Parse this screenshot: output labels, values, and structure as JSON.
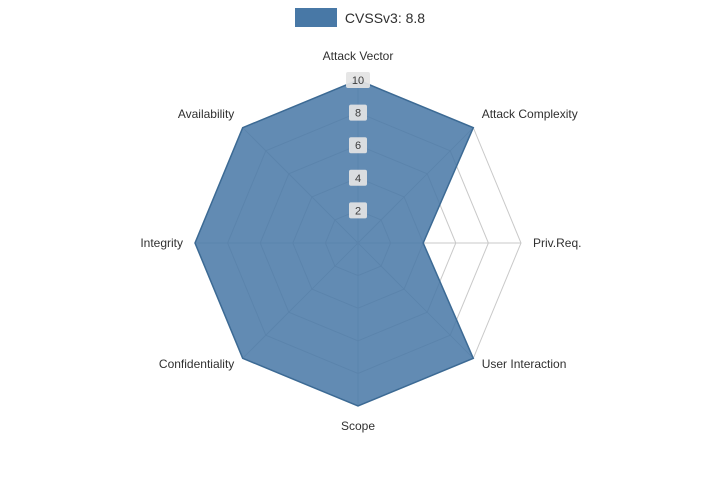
{
  "chart_data": {
    "type": "radar",
    "title": "",
    "legend": {
      "label": "CVSSv3: 8.8",
      "color": "#4878a6"
    },
    "categories": [
      "Attack Vector",
      "Attack Complexity",
      "Priv.Req.",
      "User Interaction",
      "Scope",
      "Confidentiality",
      "Integrity",
      "Availability"
    ],
    "values": [
      10,
      10,
      4,
      10,
      10,
      10,
      10,
      10
    ],
    "ticks": [
      2,
      4,
      6,
      8,
      10
    ],
    "rlim": [
      0,
      10
    ],
    "grid": "on",
    "legend_position": "top-center",
    "fill_color": "#4878a6",
    "line_color": "#3c6a94",
    "grid_color": "#c9c9c9",
    "tick_bg_color": "#e4e4e4"
  }
}
